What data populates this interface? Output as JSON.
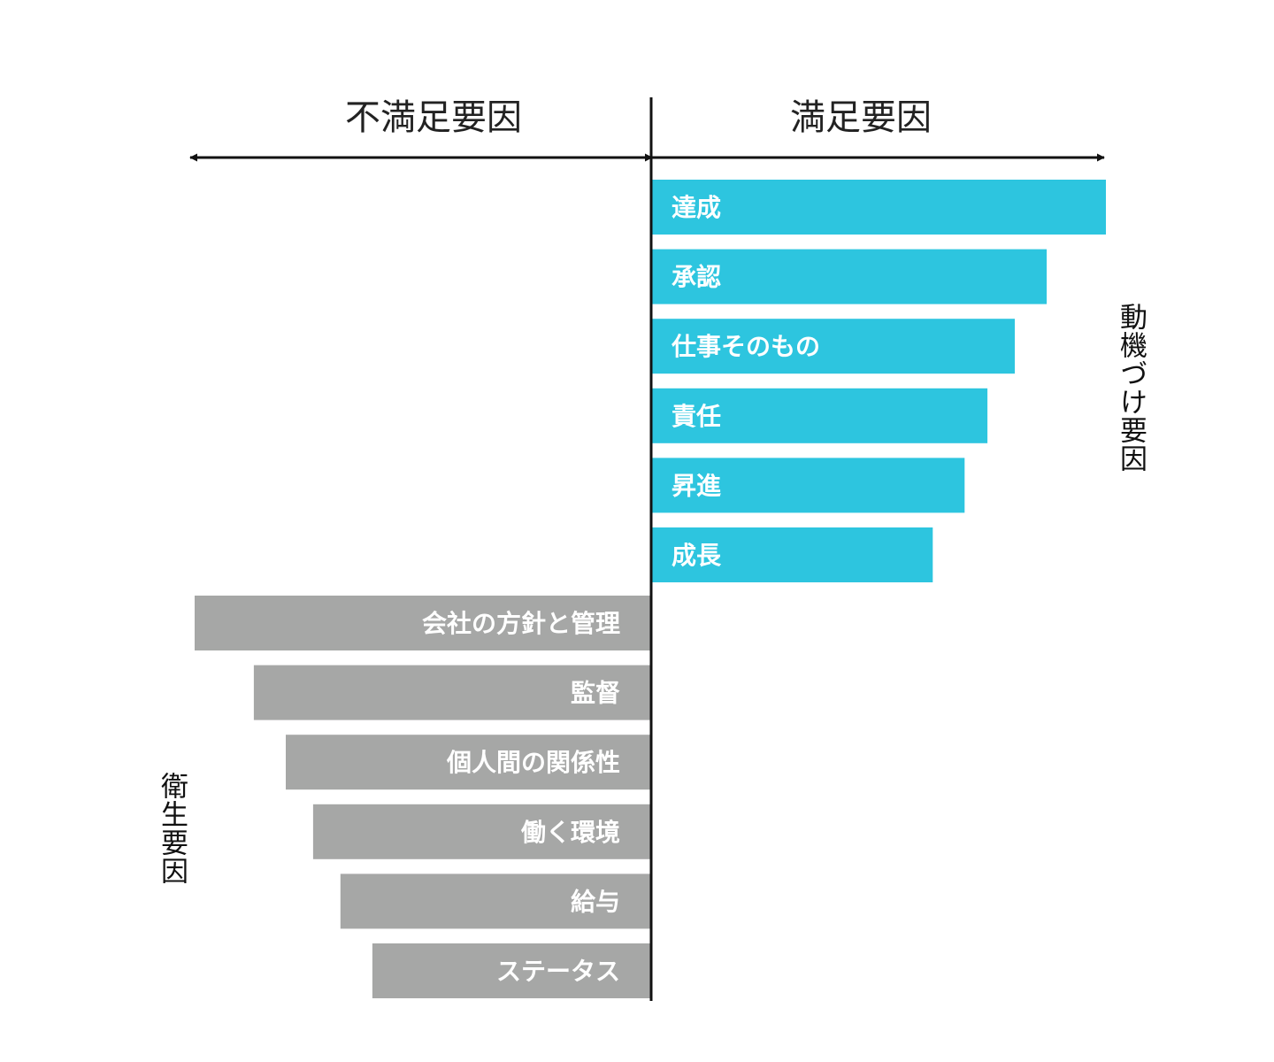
{
  "headers": {
    "left": "不満足要因",
    "right": "満足要因"
  },
  "group_labels": {
    "motivators": "動機づけ要因",
    "hygiene": "衛生要因"
  },
  "colors": {
    "motivator": "#2dc5df",
    "hygiene": "#a6a7a6",
    "axis": "#111111",
    "label_text": "#ffffff"
  },
  "chart_data": {
    "type": "bar",
    "orientation": "horizontal-diverging",
    "title": "",
    "xlabel": "",
    "ylabel": "",
    "x_axis": {
      "left_label": "不満足要因",
      "right_label": "満足要因",
      "arrows": "both"
    },
    "xlim": [
      -100,
      100
    ],
    "grid": false,
    "series": [
      {
        "name": "動機づけ要因",
        "direction": "right",
        "categories": [
          "達成",
          "承認",
          "仕事そのもの",
          "責任",
          "昇進",
          "成長"
        ],
        "values": [
          100,
          87,
          80,
          74,
          69,
          62
        ]
      },
      {
        "name": "衛生要因",
        "direction": "left",
        "categories": [
          "会社の方針と管理",
          "監督",
          "個人間の関係性",
          "働く環境",
          "給与",
          "ステータス"
        ],
        "values": [
          100,
          87,
          80,
          74,
          68,
          61
        ]
      }
    ]
  }
}
